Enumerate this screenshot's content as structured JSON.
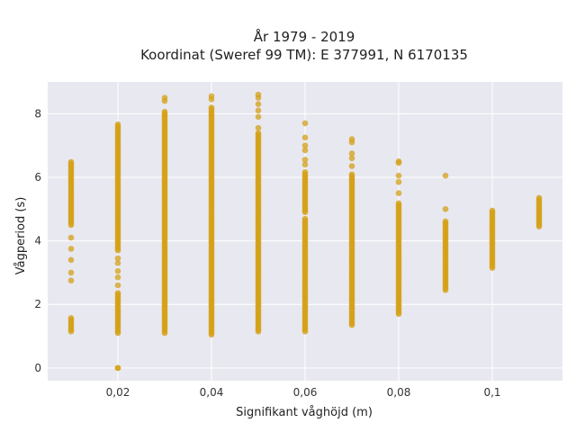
{
  "chart_data": {
    "type": "scatter",
    "title_line1": "År 1979 - 2019",
    "title_line2": "Koordinat (Sweref 99 TM): E 377991, N 6170135",
    "xlabel": "Signifikant våghöjd (m)",
    "ylabel": "Vågperiod (s)",
    "xlim": [
      0.005,
      0.115
    ],
    "ylim": [
      -0.4,
      9.0
    ],
    "x_ticks": [
      0.02,
      0.04,
      0.06,
      0.08,
      0.1
    ],
    "x_tick_labels": [
      "0,02",
      "0,04",
      "0,06",
      "0,08",
      "0,1"
    ],
    "y_ticks": [
      0,
      2,
      4,
      6,
      8
    ],
    "y_tick_labels": [
      "0",
      "2",
      "4",
      "6",
      "8"
    ],
    "grid": true,
    "marker_color": "#D4A017",
    "plot_background": "#E8E8F0",
    "columns": [
      {
        "x": 0.01,
        "ranges": [
          [
            1.15,
            1.6
          ],
          [
            4.5,
            6.5
          ]
        ],
        "points": [
          2.75,
          3.0,
          3.4,
          3.75,
          4.1
        ]
      },
      {
        "x": 0.02,
        "ranges": [
          [
            1.1,
            2.4
          ],
          [
            3.7,
            7.7
          ]
        ],
        "points": [
          0.0,
          0.0,
          2.6,
          2.85,
          3.05,
          3.3,
          3.45
        ]
      },
      {
        "x": 0.03,
        "ranges": [
          [
            1.1,
            8.1
          ]
        ],
        "points": [
          8.4,
          8.5
        ]
      },
      {
        "x": 0.04,
        "ranges": [
          [
            1.05,
            8.2
          ]
        ],
        "points": [
          8.45,
          8.55
        ]
      },
      {
        "x": 0.05,
        "ranges": [
          [
            1.15,
            7.4
          ]
        ],
        "points": [
          7.55,
          7.9,
          8.1,
          8.3,
          8.5,
          8.6
        ]
      },
      {
        "x": 0.06,
        "ranges": [
          [
            1.15,
            4.7
          ],
          [
            4.9,
            6.2
          ]
        ],
        "points": [
          6.4,
          6.55,
          6.85,
          7.0,
          7.25,
          7.7
        ]
      },
      {
        "x": 0.07,
        "ranges": [
          [
            1.35,
            6.1
          ]
        ],
        "points": [
          6.35,
          6.6,
          6.75,
          7.1,
          7.2
        ]
      },
      {
        "x": 0.08,
        "ranges": [
          [
            1.7,
            5.2
          ]
        ],
        "points": [
          5.5,
          5.85,
          6.05,
          6.45,
          6.5
        ]
      },
      {
        "x": 0.09,
        "ranges": [
          [
            2.45,
            4.65
          ]
        ],
        "points": [
          5.0,
          6.05
        ]
      },
      {
        "x": 0.1,
        "ranges": [
          [
            3.15,
            5.0
          ]
        ],
        "points": []
      },
      {
        "x": 0.11,
        "ranges": [
          [
            4.45,
            5.4
          ]
        ],
        "points": []
      }
    ]
  }
}
